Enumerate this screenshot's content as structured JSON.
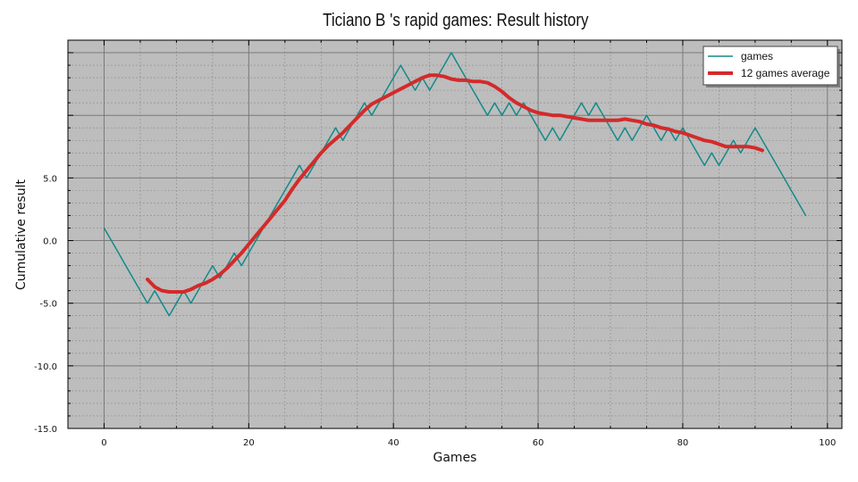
{
  "chart_data": {
    "type": "line",
    "title": "Ticiano B 's rapid games: Result history",
    "xlabel": "Games",
    "ylabel": "Cumulative result",
    "xlim": [
      -5,
      102
    ],
    "ylim": [
      -15,
      16
    ],
    "x_ticks": [
      0,
      20,
      40,
      60,
      80,
      100
    ],
    "x_tick_labels": [
      "0",
      "20",
      "40",
      "60",
      "80",
      "100"
    ],
    "y_ticks": [
      -15,
      -10,
      -5,
      0,
      5
    ],
    "y_tick_labels": [
      "-15.0",
      "-10.0",
      "-5.0",
      "0.0",
      "5.0"
    ],
    "grid": true,
    "legend_position": "top-right",
    "colors": {
      "games": "#138a8a",
      "average": "#d42a2a",
      "background": "#bdbdbd"
    },
    "series": [
      {
        "name": "games",
        "x": [
          0,
          1,
          2,
          3,
          4,
          5,
          6,
          7,
          8,
          9,
          10,
          11,
          12,
          13,
          14,
          15,
          16,
          17,
          18,
          19,
          20,
          21,
          22,
          23,
          24,
          25,
          26,
          27,
          28,
          29,
          30,
          31,
          32,
          33,
          34,
          35,
          36,
          37,
          38,
          39,
          40,
          41,
          42,
          43,
          44,
          45,
          46,
          47,
          48,
          49,
          50,
          51,
          52,
          53,
          54,
          55,
          56,
          57,
          58,
          59,
          60,
          61,
          62,
          63,
          64,
          65,
          66,
          67,
          68,
          69,
          70,
          71,
          72,
          73,
          74,
          75,
          76,
          77,
          78,
          79,
          80,
          81,
          82,
          83,
          84,
          85,
          86,
          87,
          88,
          89,
          90,
          91,
          92,
          93,
          94,
          95,
          96,
          97
        ],
        "values": [
          1,
          0,
          -1,
          -2,
          -3,
          -4,
          -5,
          -4,
          -5,
          -6,
          -5,
          -4,
          -5,
          -4,
          -3,
          -2,
          -3,
          -2,
          -1,
          -2,
          -1,
          0,
          1,
          2,
          3,
          4,
          5,
          6,
          5,
          6,
          7,
          8,
          9,
          8,
          9,
          10,
          11,
          10,
          11,
          12,
          13,
          14,
          13,
          12,
          13,
          12,
          13,
          14,
          15,
          14,
          13,
          12,
          11,
          10,
          11,
          10,
          11,
          10,
          11,
          10,
          9,
          8,
          9,
          8,
          9,
          10,
          11,
          10,
          11,
          10,
          9,
          8,
          9,
          8,
          9,
          10,
          9,
          8,
          9,
          8,
          9,
          8,
          7,
          6,
          7,
          6,
          7,
          8,
          7,
          8,
          9,
          8,
          7,
          6,
          5,
          4,
          3,
          2
        ]
      },
      {
        "name": "12 games average",
        "x": [
          6,
          7,
          8,
          9,
          10,
          11,
          12,
          13,
          14,
          15,
          16,
          17,
          18,
          19,
          20,
          21,
          22,
          23,
          24,
          25,
          26,
          27,
          28,
          29,
          30,
          31,
          32,
          33,
          34,
          35,
          36,
          37,
          38,
          39,
          40,
          41,
          42,
          43,
          44,
          45,
          46,
          47,
          48,
          49,
          50,
          51,
          52,
          53,
          54,
          55,
          56,
          57,
          58,
          59,
          60,
          61,
          62,
          63,
          64,
          65,
          66,
          67,
          68,
          69,
          70,
          71,
          72,
          73,
          74,
          75,
          76,
          77,
          78,
          79,
          80,
          81,
          82,
          83,
          84,
          85,
          86,
          87,
          88,
          89,
          90,
          91
        ],
        "values": [
          -3.1,
          -3.7,
          -4.0,
          -4.1,
          -4.1,
          -4.1,
          -3.9,
          -3.6,
          -3.4,
          -3.1,
          -2.7,
          -2.2,
          -1.6,
          -1.0,
          -0.3,
          0.4,
          1.1,
          1.8,
          2.5,
          3.2,
          4.1,
          4.9,
          5.6,
          6.3,
          7.0,
          7.6,
          8.1,
          8.6,
          9.2,
          9.8,
          10.4,
          10.9,
          11.2,
          11.5,
          11.8,
          12.1,
          12.4,
          12.7,
          13.0,
          13.2,
          13.2,
          13.1,
          12.9,
          12.8,
          12.8,
          12.7,
          12.7,
          12.6,
          12.3,
          11.9,
          11.4,
          11.0,
          10.7,
          10.4,
          10.2,
          10.1,
          10.0,
          10.0,
          9.9,
          9.8,
          9.7,
          9.6,
          9.6,
          9.6,
          9.6,
          9.6,
          9.7,
          9.6,
          9.5,
          9.3,
          9.2,
          9.0,
          8.9,
          8.7,
          8.6,
          8.4,
          8.2,
          8.0,
          7.9,
          7.7,
          7.5,
          7.5,
          7.5,
          7.5,
          7.4,
          7.2
        ]
      }
    ]
  }
}
